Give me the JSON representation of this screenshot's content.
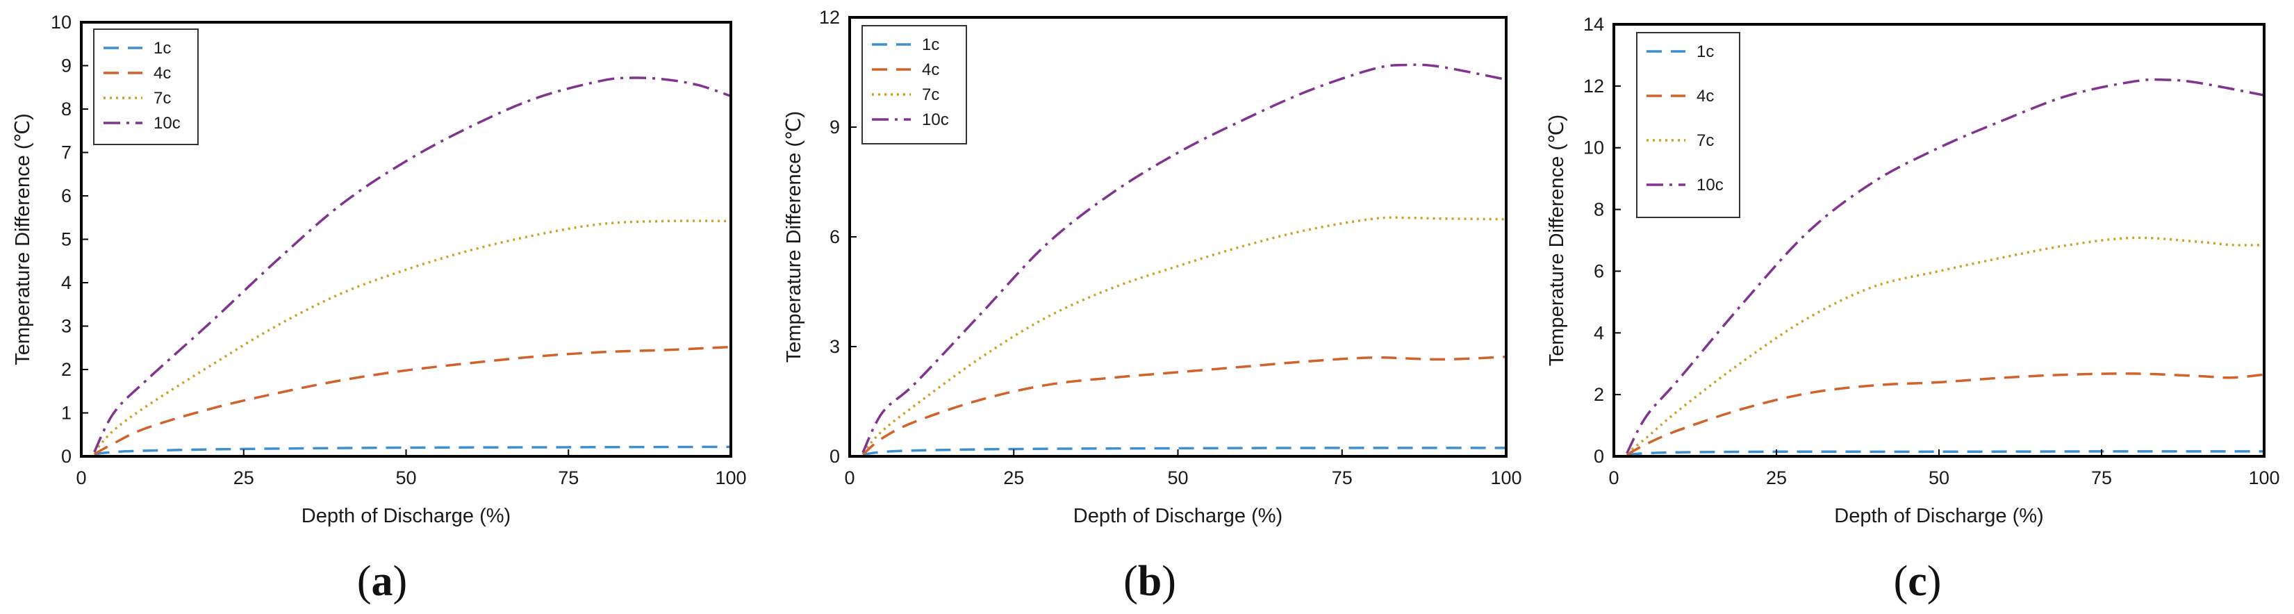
{
  "chart_data": [
    {
      "type": "line",
      "caption": "(a)",
      "caption_letter": "a",
      "xlabel": "Depth of Discharge (%)",
      "ylabel": "Temperature Difference (℃)",
      "xlim": [
        0,
        100
      ],
      "ylim": [
        0,
        10
      ],
      "xticks": [
        0,
        25,
        50,
        75,
        100
      ],
      "yticks": [
        0,
        1,
        2,
        3,
        4,
        5,
        6,
        7,
        8,
        9,
        10
      ],
      "grid": false,
      "legend_position": "top-left",
      "series": [
        {
          "name": "1c",
          "color": "#3f8fce",
          "style": "dashed",
          "x": [
            2,
            5,
            10,
            25,
            50,
            75,
            100
          ],
          "y": [
            0.05,
            0.1,
            0.13,
            0.17,
            0.2,
            0.21,
            0.22
          ]
        },
        {
          "name": "4c",
          "color": "#d2622b",
          "style": "dashed",
          "x": [
            2,
            5,
            10,
            20,
            30,
            40,
            50,
            60,
            70,
            80,
            90,
            100
          ],
          "y": [
            0.05,
            0.3,
            0.65,
            1.1,
            1.45,
            1.75,
            1.98,
            2.15,
            2.3,
            2.4,
            2.45,
            2.52
          ]
        },
        {
          "name": "7c",
          "color": "#c9a227",
          "style": "dotted",
          "x": [
            2,
            5,
            10,
            20,
            30,
            40,
            50,
            60,
            70,
            80,
            90,
            100
          ],
          "y": [
            0.1,
            0.6,
            1.15,
            2.1,
            3.0,
            3.75,
            4.3,
            4.75,
            5.1,
            5.35,
            5.42,
            5.42
          ]
        },
        {
          "name": "10c",
          "color": "#80348f",
          "style": "dashdot",
          "x": [
            2,
            5,
            10,
            20,
            30,
            40,
            50,
            60,
            70,
            80,
            85,
            90,
            95,
            100
          ],
          "y": [
            0.1,
            1.0,
            1.75,
            3.1,
            4.5,
            5.8,
            6.8,
            7.6,
            8.25,
            8.65,
            8.72,
            8.68,
            8.55,
            8.3
          ]
        }
      ]
    },
    {
      "type": "line",
      "caption": "(b)",
      "caption_letter": "b",
      "xlabel": "Depth of Discharge (%)",
      "ylabel": "Temperature Difference (℃)",
      "xlim": [
        0,
        100
      ],
      "ylim": [
        0,
        12
      ],
      "xticks": [
        0,
        25,
        50,
        75,
        100
      ],
      "yticks": [
        0,
        3,
        6,
        9,
        12
      ],
      "grid": false,
      "legend_position": "top-left",
      "series": [
        {
          "name": "1c",
          "color": "#3f8fce",
          "style": "dashed",
          "x": [
            2,
            5,
            10,
            25,
            50,
            75,
            100
          ],
          "y": [
            0.05,
            0.12,
            0.16,
            0.2,
            0.22,
            0.23,
            0.23
          ]
        },
        {
          "name": "4c",
          "color": "#d2622b",
          "style": "dashed",
          "x": [
            2,
            5,
            10,
            20,
            30,
            40,
            50,
            60,
            70,
            80,
            90,
            100
          ],
          "y": [
            0.05,
            0.5,
            0.95,
            1.55,
            1.95,
            2.15,
            2.3,
            2.45,
            2.6,
            2.7,
            2.65,
            2.72
          ]
        },
        {
          "name": "7c",
          "color": "#c9a227",
          "style": "dotted",
          "x": [
            2,
            5,
            10,
            20,
            30,
            40,
            50,
            60,
            70,
            80,
            85,
            90,
            100
          ],
          "y": [
            0.1,
            0.7,
            1.4,
            2.7,
            3.8,
            4.6,
            5.2,
            5.75,
            6.2,
            6.5,
            6.52,
            6.5,
            6.48
          ]
        },
        {
          "name": "10c",
          "color": "#80348f",
          "style": "dashdot",
          "x": [
            2,
            5,
            10,
            20,
            30,
            40,
            50,
            60,
            70,
            80,
            85,
            90,
            100
          ],
          "y": [
            0.1,
            1.2,
            2.0,
            3.9,
            5.8,
            7.2,
            8.3,
            9.2,
            10.0,
            10.6,
            10.7,
            10.65,
            10.3
          ]
        }
      ]
    },
    {
      "type": "line",
      "caption": "(c)",
      "caption_letter": "c",
      "xlabel": "Depth of Discharge (%)",
      "ylabel": "Temperature Difference (℃)",
      "xlim": [
        0,
        100
      ],
      "ylim": [
        0,
        14
      ],
      "xticks": [
        0,
        25,
        50,
        75,
        100
      ],
      "yticks": [
        0,
        2,
        4,
        6,
        8,
        10,
        12,
        14
      ],
      "grid": false,
      "legend_position": "top-left",
      "series": [
        {
          "name": "1c",
          "color": "#3f8fce",
          "style": "dashed",
          "x": [
            2,
            5,
            10,
            25,
            50,
            75,
            100
          ],
          "y": [
            0.05,
            0.1,
            0.13,
            0.15,
            0.15,
            0.16,
            0.16
          ]
        },
        {
          "name": "4c",
          "color": "#d2622b",
          "style": "dashed",
          "x": [
            2,
            5,
            10,
            20,
            30,
            40,
            50,
            60,
            70,
            80,
            90,
            95,
            100
          ],
          "y": [
            0.05,
            0.4,
            0.85,
            1.55,
            2.05,
            2.3,
            2.4,
            2.55,
            2.65,
            2.68,
            2.6,
            2.55,
            2.65
          ]
        },
        {
          "name": "7c",
          "color": "#c9a227",
          "style": "dotted",
          "x": [
            2,
            5,
            10,
            20,
            30,
            40,
            50,
            60,
            70,
            80,
            90,
            95,
            100
          ],
          "y": [
            0.1,
            0.6,
            1.5,
            3.1,
            4.5,
            5.5,
            6.0,
            6.45,
            6.85,
            7.08,
            6.95,
            6.85,
            6.85
          ]
        },
        {
          "name": "10c",
          "color": "#80348f",
          "style": "dashdot",
          "x": [
            2,
            5,
            10,
            20,
            30,
            40,
            50,
            60,
            70,
            80,
            85,
            90,
            100
          ],
          "y": [
            0.1,
            1.3,
            2.5,
            5.0,
            7.3,
            8.9,
            10.0,
            10.9,
            11.7,
            12.15,
            12.2,
            12.1,
            11.7
          ]
        }
      ]
    }
  ]
}
